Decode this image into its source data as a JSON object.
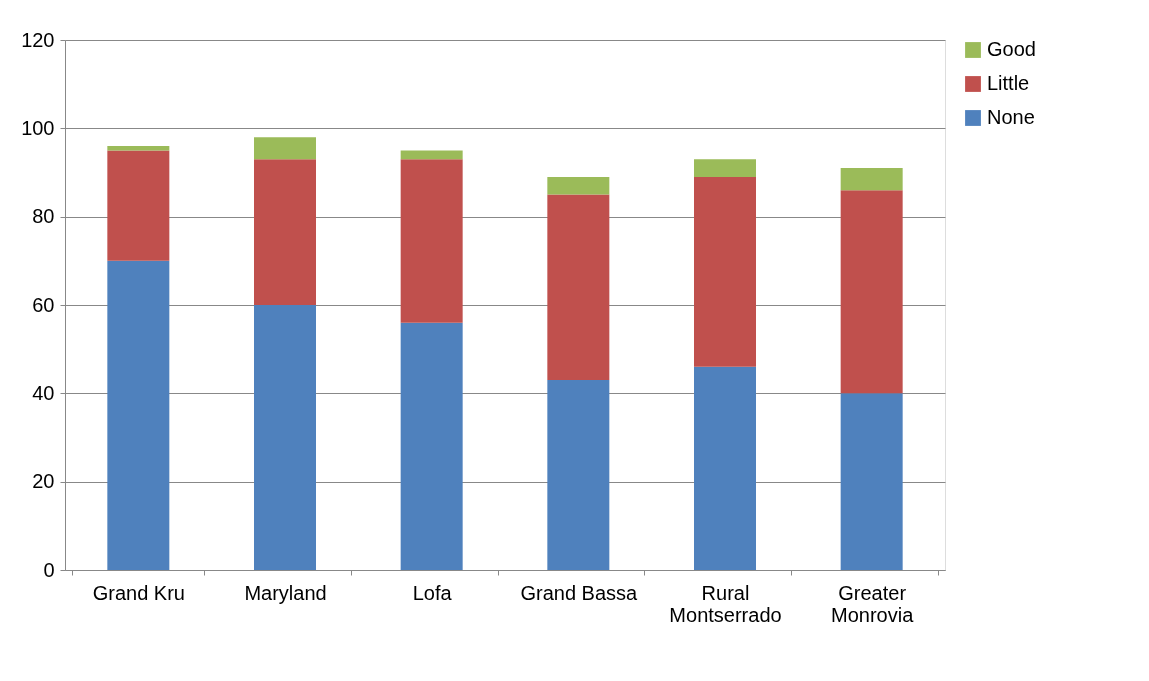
{
  "chart_data": {
    "type": "bar",
    "stacked": true,
    "categories": [
      "Grand Kru",
      "Maryland",
      "Lofa",
      "Grand Bassa",
      "Rural Montserrado",
      "Greater Monrovia"
    ],
    "series": [
      {
        "name": "None",
        "color": "#4f81bd",
        "values": [
          70,
          60,
          56,
          43,
          46,
          40
        ]
      },
      {
        "name": "Little",
        "color": "#c0504d",
        "values": [
          25,
          33,
          37,
          42,
          43,
          46
        ]
      },
      {
        "name": "Good",
        "color": "#9bbb59",
        "values": [
          1,
          5,
          2,
          4,
          4,
          5
        ]
      }
    ],
    "ylim": [
      0,
      120
    ],
    "yticks": [
      0,
      20,
      40,
      60,
      80,
      100,
      120
    ],
    "grid": "y",
    "legend": "right"
  }
}
